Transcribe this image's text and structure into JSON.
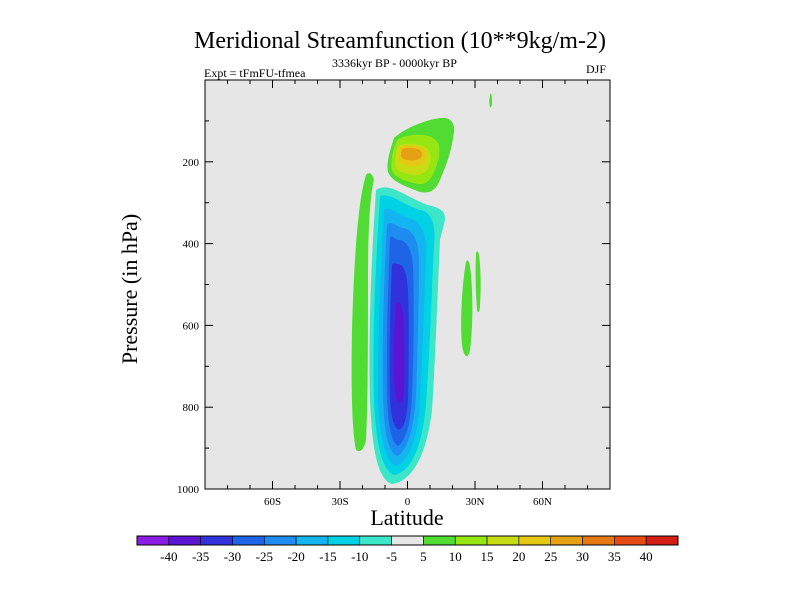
{
  "title": "Meridional Streamfunction (10**9kg/m-2)",
  "subtitle_left": "Expt = tFmFU-tfmea",
  "subtitle_center": "3336kyr BP - 0000kyr BP",
  "subtitle_right": "DJF",
  "chart_data": {
    "type": "contour",
    "title": "Meridional Streamfunction (10**9kg/m-2)",
    "xlabel": "Latitude",
    "ylabel": "Pressure (in hPa)",
    "x_range": [
      -90,
      90
    ],
    "y_range": [
      0,
      1000
    ],
    "y_inverted": true,
    "x_ticks": [
      {
        "value": -60,
        "label": "60S"
      },
      {
        "value": -30,
        "label": "30S"
      },
      {
        "value": 0,
        "label": "0"
      },
      {
        "value": 30,
        "label": "30N"
      },
      {
        "value": 60,
        "label": "60N"
      }
    ],
    "y_ticks": [
      {
        "value": 200,
        "label": "200"
      },
      {
        "value": 400,
        "label": "400"
      },
      {
        "value": 600,
        "label": "600"
      },
      {
        "value": 800,
        "label": "800"
      },
      {
        "value": 1000,
        "label": "1000"
      }
    ],
    "background_color": "#e6e6e6",
    "colorbar": {
      "levels": [
        "-40",
        "-35",
        "-30",
        "-25",
        "-20",
        "-15",
        "-10",
        "-5",
        "5",
        "10",
        "15",
        "20",
        "25",
        "30",
        "35",
        "40"
      ],
      "colors": [
        "#8a1ee6",
        "#5a14d2",
        "#3232dc",
        "#1e64e6",
        "#1e8cf0",
        "#14b4f0",
        "#00d2e6",
        "#3ce6c8",
        "#e6e6e6",
        "#50dc32",
        "#96e614",
        "#c8dc14",
        "#e6c814",
        "#e6a014",
        "#e67814",
        "#e64b14",
        "#d21e14"
      ]
    },
    "features": [
      {
        "name": "negative-cell-core",
        "lat_range": [
          -12,
          8
        ],
        "p_range": [
          200,
          975
        ],
        "min_value": -35
      },
      {
        "name": "positive-cell-upper",
        "lat_range": [
          -4,
          16
        ],
        "p_range": [
          100,
          230
        ],
        "max_value": 25
      },
      {
        "name": "positive-band-southern",
        "lat_range": [
          -20,
          -17
        ],
        "p_range": [
          280,
          920
        ],
        "max_value": 5
      },
      {
        "name": "positive-band-northern",
        "lat_range": [
          24,
          30
        ],
        "p_range": [
          360,
          690
        ],
        "max_value": 5
      },
      {
        "name": "positive-spot-top",
        "lat_range": [
          37,
          38
        ],
        "p_range": [
          40,
          70
        ],
        "max_value": 5
      }
    ]
  }
}
